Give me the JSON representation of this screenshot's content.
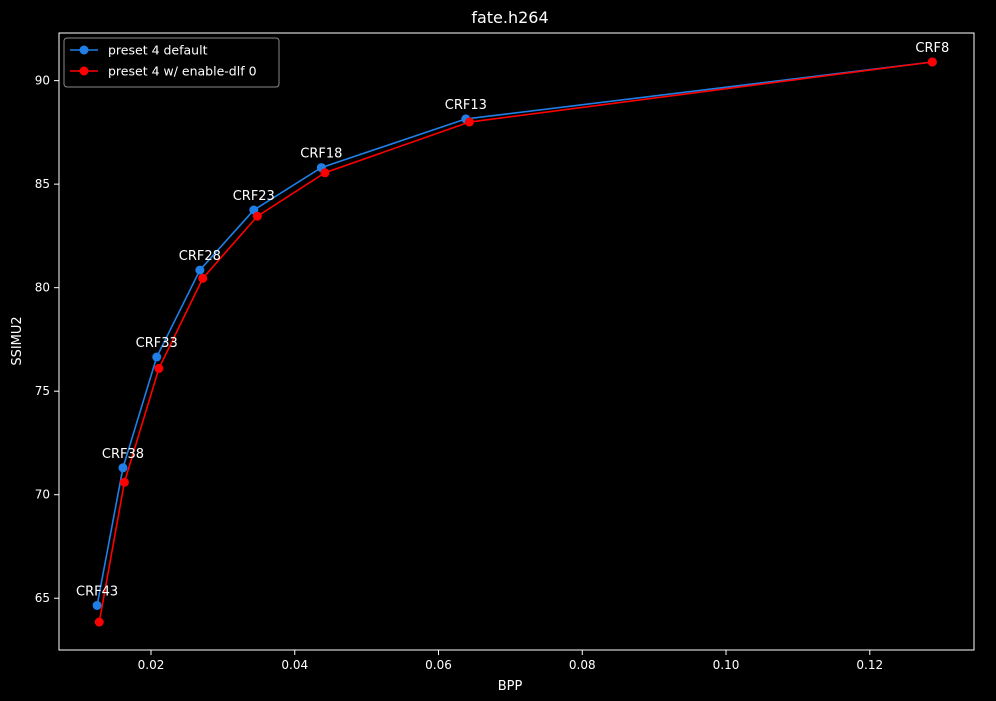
{
  "chart_data": {
    "type": "line",
    "title": "fate.h264",
    "xlabel": "BPP",
    "ylabel": "SSIMU2",
    "xlim": [
      0.0072,
      0.1345
    ],
    "ylim": [
      62.5,
      92.3
    ],
    "xticks": [
      0.02,
      0.04,
      0.06,
      0.08,
      0.1,
      0.12
    ],
    "xtick_labels": [
      "0.02",
      "0.04",
      "0.06",
      "0.08",
      "0.10",
      "0.12"
    ],
    "yticks": [
      65,
      70,
      75,
      80,
      85,
      90
    ],
    "ytick_labels": [
      "65",
      "70",
      "75",
      "80",
      "85",
      "90"
    ],
    "grid": false,
    "legend_position": "top-left",
    "point_labels": [
      "CRF43",
      "CRF38",
      "CRF33",
      "CRF28",
      "CRF23",
      "CRF18",
      "CRF13",
      "CRF8"
    ],
    "series": [
      {
        "name": "preset 4 default",
        "color": "#1f7fe6",
        "x": [
          0.0125,
          0.0161,
          0.0208,
          0.0268,
          0.0343,
          0.0437,
          0.0638,
          0.1287
        ],
        "y": [
          64.65,
          71.3,
          76.65,
          80.85,
          83.75,
          85.8,
          88.15,
          90.9
        ]
      },
      {
        "name": "preset 4 w/ enable-dlf 0",
        "color": "#ff0000",
        "x": [
          0.0128,
          0.0163,
          0.0211,
          0.0272,
          0.0348,
          0.0442,
          0.0643,
          0.1287
        ],
        "y": [
          63.85,
          70.6,
          76.1,
          80.45,
          83.45,
          85.55,
          88.0,
          90.9
        ]
      }
    ]
  }
}
